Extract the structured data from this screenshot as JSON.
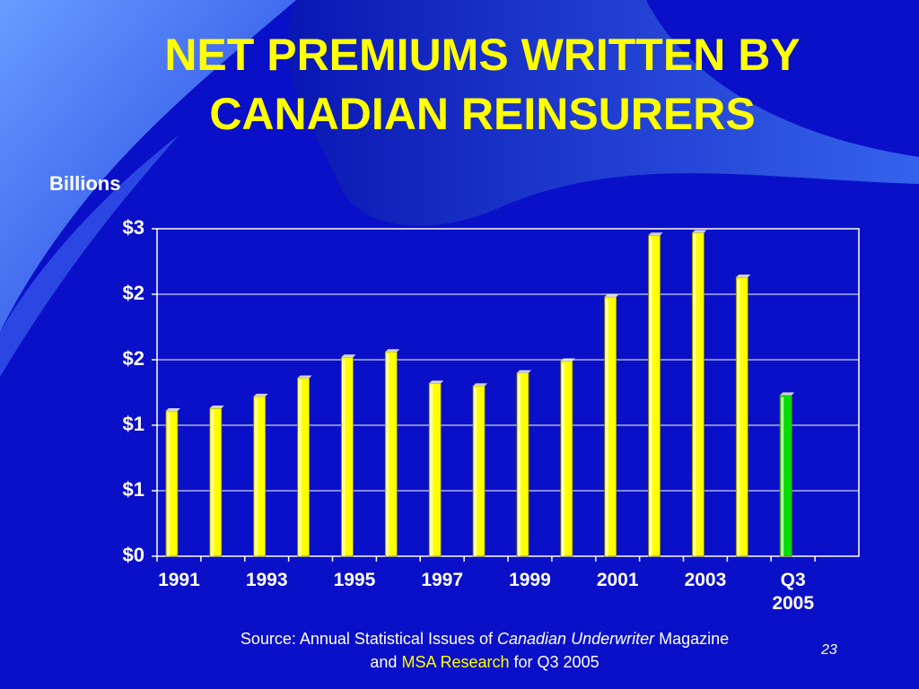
{
  "chart_data": {
    "type": "bar",
    "title": "NET PREMIUMS WRITTEN BY CANADIAN REINSURERS",
    "y_label": "Billions",
    "categories": [
      "1991",
      null,
      "1993",
      null,
      "1995",
      null,
      "1997",
      null,
      "1999",
      null,
      "2001",
      null,
      "2003",
      null,
      "Q3 2005",
      null
    ],
    "values": [
      1.11,
      1.13,
      1.22,
      1.36,
      1.52,
      1.56,
      1.32,
      1.3,
      1.4,
      1.49,
      1.98,
      2.45,
      2.47,
      2.13,
      1.23,
      null
    ],
    "colors": [
      "#ffff00",
      "#ffff00",
      "#ffff00",
      "#ffff00",
      "#ffff00",
      "#ffff00",
      "#ffff00",
      "#ffff00",
      "#ffff00",
      "#ffff00",
      "#ffff00",
      "#ffff00",
      "#ffff00",
      "#ffff00",
      "#00dd00",
      null
    ],
    "ylim": [
      0,
      2.5
    ],
    "yticks": [
      {
        "value": 0,
        "label": "$0"
      },
      {
        "value": 0.5,
        "label": "$1"
      },
      {
        "value": 1,
        "label": "$1"
      },
      {
        "value": 1.5,
        "label": "$2"
      },
      {
        "value": 2,
        "label": "$2"
      },
      {
        "value": 2.5,
        "label": "$3"
      }
    ],
    "grid": true
  },
  "source": {
    "p1": "Source:  Annual Statistical Issues of",
    "p2": "Canadian Underwriter",
    "p3": "Magazine",
    "p4": "and",
    "p5": "MSA Research",
    "p6": "for Q3 2005"
  },
  "page_number": "23"
}
